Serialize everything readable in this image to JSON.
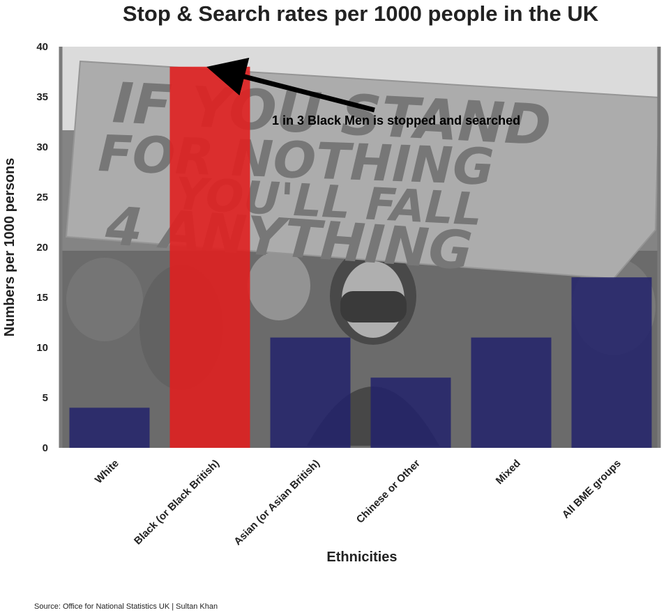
{
  "chart_data": {
    "type": "bar",
    "title": "Stop & Search rates per 1000 people in the UK",
    "xlabel": "Ethnicities",
    "ylabel": "Numbers per 1000 persons",
    "categories": [
      "White",
      "Black (or Black British)",
      "Asian (or Asian British)",
      "Chinese or Other",
      "Mixed",
      "All BME groups"
    ],
    "values": [
      4,
      38,
      11,
      7,
      11,
      17
    ],
    "ylim": [
      0,
      40
    ],
    "yticks": [
      0,
      5,
      10,
      15,
      20,
      25,
      30,
      35,
      40
    ],
    "bar_colors": [
      "#22226b",
      "#e02020",
      "#22226b",
      "#22226b",
      "#22226b",
      "#22226b"
    ],
    "highlight_index": 1,
    "grid": false,
    "background": "protest photo with sign reading IF YOU STAND FOR NOTHING YOU'LL FALL 4 ANYTHING",
    "annotation": {
      "text": "1 in 3 Black Men is stopped and searched",
      "points_to_category": "Black (or Black British)",
      "points_to_value": 38
    },
    "source": "Source: Office for National Statistics UK | Sultan Khan"
  },
  "sign_text": [
    "IF YOU STAND",
    "FOR NOTHING",
    "YOU'LL FALL",
    "4 ANYTHING"
  ]
}
